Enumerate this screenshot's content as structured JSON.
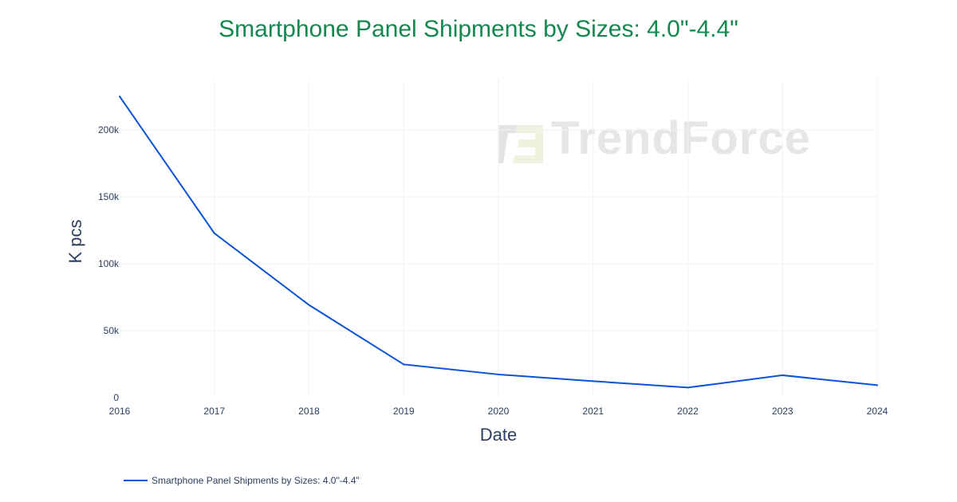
{
  "chart_data": {
    "type": "line",
    "title": "Smartphone Panel Shipments by Sizes: 4.0\"-4.4\"",
    "xlabel": "Date",
    "ylabel": "K pcs",
    "x": [
      "2016",
      "2017",
      "2018",
      "2019",
      "2020",
      "2021",
      "2022",
      "2023",
      "2024"
    ],
    "series": [
      {
        "name": "Smartphone Panel Shipments by Sizes: 4.0\"-4.4\"",
        "values": [
          225,
          122.8,
          69.2,
          24.8,
          17.3,
          12.3,
          7.5,
          16.7,
          9.3
        ],
        "color": "#0a52d8"
      }
    ],
    "yticks": [
      0,
      50,
      100,
      150,
      200
    ],
    "ytick_labels": [
      "0",
      "50k",
      "100k",
      "150k",
      "200k"
    ],
    "ylim": [
      0,
      230
    ],
    "grid": true,
    "legend": "bottom-left",
    "title_color": "#15884f"
  },
  "watermark": "TrendForce"
}
